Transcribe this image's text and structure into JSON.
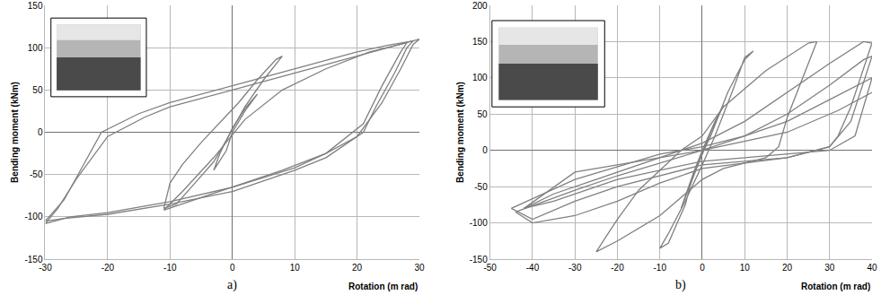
{
  "chart_data": [
    {
      "type": "line",
      "label": "a)",
      "xlabel": "Rotation (m rad)",
      "ylabel": "Bending moment (kNm)",
      "xlim": [
        -30,
        30
      ],
      "ylim": [
        -150,
        150
      ],
      "xticks": [
        -30,
        -20,
        -10,
        0,
        10,
        20,
        30
      ],
      "yticks": [
        -150,
        -100,
        -50,
        0,
        50,
        100,
        150
      ],
      "grid": true,
      "color": "#808080",
      "series": [
        {
          "x": [
            0,
            2,
            4,
            2,
            0,
            -2,
            -3,
            -1,
            0
          ],
          "values": [
            0,
            25,
            45,
            28,
            5,
            -25,
            -45,
            -22,
            0
          ]
        },
        {
          "x": [
            -1,
            2,
            5,
            8,
            7,
            4,
            1,
            -2,
            -5,
            -8,
            -10,
            -11,
            -9,
            -6,
            -3,
            -1
          ],
          "values": [
            -10,
            30,
            62,
            90,
            86,
            62,
            35,
            12,
            -12,
            -38,
            -60,
            -90,
            -85,
            -60,
            -35,
            -10
          ]
        },
        {
          "x": [
            -30,
            -27,
            -24,
            -21,
            -15,
            -10,
            0,
            10,
            20,
            25,
            29,
            28,
            26,
            23,
            21,
            15,
            10,
            0,
            -10,
            -20,
            -27,
            -30
          ],
          "values": [
            -105,
            -80,
            -40,
            0,
            22,
            35,
            55,
            75,
            95,
            103,
            108,
            100,
            70,
            30,
            0,
            -30,
            -45,
            -70,
            -85,
            -97,
            -102,
            -105
          ]
        },
        {
          "x": [
            -30,
            -28,
            -25,
            -20,
            -14,
            -10,
            0,
            10,
            20,
            26,
            30,
            29,
            27,
            24,
            20,
            15,
            10,
            0,
            -10,
            -20,
            -26,
            -30
          ],
          "values": [
            -108,
            -90,
            -55,
            -5,
            18,
            30,
            50,
            70,
            90,
            102,
            110,
            104,
            75,
            35,
            -5,
            -25,
            -42,
            -65,
            -82,
            -95,
            -100,
            -108
          ]
        },
        {
          "x": [
            -11,
            -8,
            -3,
            2,
            8,
            15,
            22,
            28,
            27,
            24,
            21,
            15,
            8,
            0,
            -6,
            -11
          ],
          "values": [
            -92,
            -70,
            -30,
            15,
            50,
            75,
            95,
            106,
            95,
            55,
            10,
            -25,
            -45,
            -65,
            -80,
            -92
          ]
        }
      ]
    },
    {
      "type": "line",
      "label": "b)",
      "xlabel": "Rotation (m rad)",
      "ylabel": "Bending moment (kNm)",
      "xlim": [
        -50,
        40
      ],
      "ylim": [
        -150,
        200
      ],
      "xticks": [
        -50,
        -40,
        -30,
        -20,
        -10,
        0,
        10,
        20,
        30,
        40
      ],
      "yticks": [
        -150,
        -100,
        -50,
        0,
        50,
        100,
        150,
        200
      ],
      "grid": true,
      "color": "#808080",
      "series": [
        {
          "x": [
            0,
            3,
            5,
            2,
            0,
            -3,
            -5,
            -2,
            0
          ],
          "values": [
            0,
            40,
            62,
            25,
            -5,
            -50,
            -80,
            -30,
            0
          ]
        },
        {
          "x": [
            -2,
            2,
            6,
            10,
            12,
            10,
            7,
            3,
            0,
            -4,
            -8,
            -10,
            -8,
            -4,
            -2
          ],
          "values": [
            -30,
            20,
            80,
            125,
            137,
            128,
            80,
            20,
            -20,
            -70,
            -115,
            -135,
            -128,
            -75,
            -30
          ]
        },
        {
          "x": [
            -25,
            -20,
            -15,
            -5,
            0,
            5,
            15,
            25,
            27,
            24,
            20,
            18,
            15,
            5,
            0,
            -10,
            -20,
            -25
          ],
          "values": [
            -140,
            -95,
            -55,
            0,
            20,
            60,
            110,
            148,
            150,
            105,
            45,
            5,
            -10,
            -25,
            -40,
            -90,
            -125,
            -140
          ]
        },
        {
          "x": [
            -42,
            -35,
            -25,
            -10,
            0,
            10,
            20,
            30,
            38,
            40,
            35,
            32,
            30,
            20,
            0,
            -10,
            -20,
            -30,
            -40,
            -44
          ],
          "values": [
            -80,
            -60,
            -40,
            -10,
            10,
            40,
            80,
            120,
            150,
            148,
            60,
            20,
            5,
            -10,
            -25,
            -45,
            -70,
            -90,
            -100,
            -85
          ]
        },
        {
          "x": [
            -44,
            -30,
            -20,
            0,
            10,
            20,
            30,
            38,
            40,
            35,
            30,
            20,
            0,
            -20,
            -30,
            -40,
            -45
          ],
          "values": [
            -85,
            -55,
            -35,
            0,
            20,
            50,
            90,
            125,
            130,
            40,
            5,
            -10,
            -20,
            -50,
            -70,
            -95,
            -80
          ]
        },
        {
          "x": [
            -45,
            -30,
            -10,
            0,
            10,
            20,
            30,
            40,
            36,
            30,
            10,
            0,
            -20,
            -35,
            -42
          ],
          "values": [
            -80,
            -40,
            -5,
            5,
            20,
            40,
            70,
            100,
            20,
            0,
            -10,
            -15,
            -40,
            -70,
            -80
          ]
        },
        {
          "x": [
            -42,
            -30,
            0,
            20,
            32,
            40
          ],
          "values": [
            -80,
            -30,
            0,
            25,
            55,
            80
          ]
        }
      ]
    }
  ]
}
